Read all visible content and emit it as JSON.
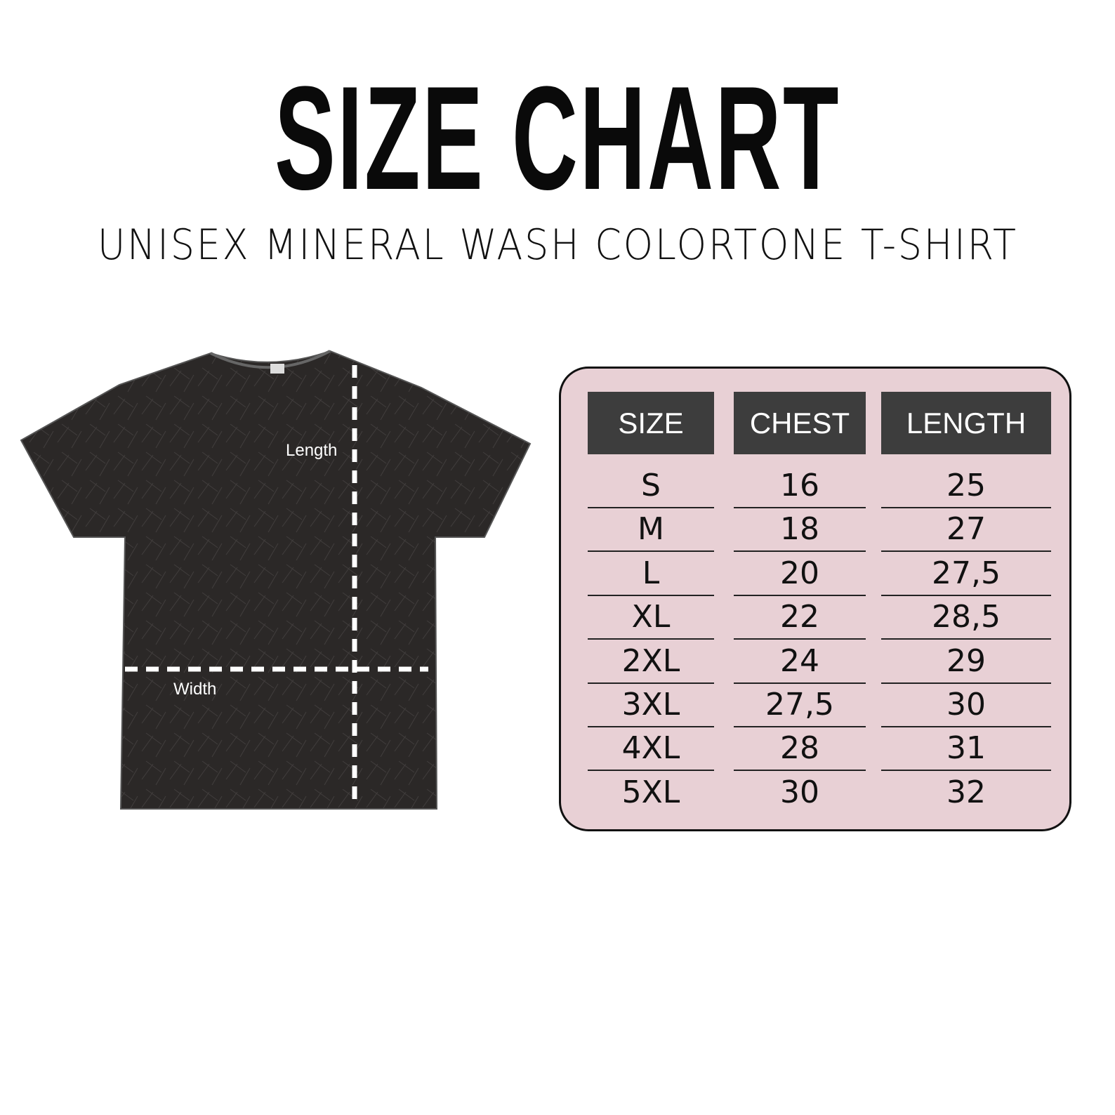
{
  "title": "SIZE CHART",
  "subtitle": "UNISEX MINERAL WASH COLORTONE T-SHIRT",
  "shirt": {
    "length_label": "Length",
    "width_label": "Width",
    "color": "#2b2827"
  },
  "table": {
    "background": "#e8d0d5",
    "header_color": "#3d3d3d",
    "headers": [
      "SIZE",
      "CHEST",
      "LENGTH"
    ],
    "rows": [
      [
        "S",
        "16",
        "25"
      ],
      [
        "M",
        "18",
        "27"
      ],
      [
        "L",
        "20",
        "27,5"
      ],
      [
        "XL",
        "22",
        "28,5"
      ],
      [
        "2XL",
        "24",
        "29"
      ],
      [
        "3XL",
        "27,5",
        "30"
      ],
      [
        "4XL",
        "28",
        "31"
      ],
      [
        "5XL",
        "30",
        "32"
      ]
    ]
  }
}
